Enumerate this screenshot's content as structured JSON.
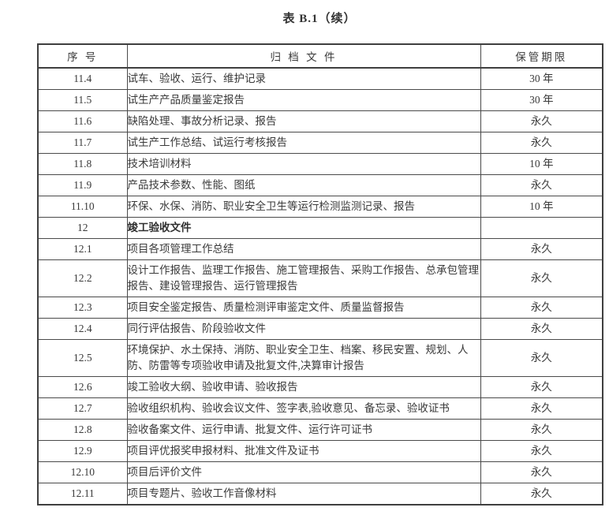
{
  "title": "表 B.1（续）",
  "colors": {
    "text": "#3a3a3a",
    "border": "#3f3f3f",
    "background": "#ffffff"
  },
  "table": {
    "headers": [
      "序 号",
      "归 档 文 件",
      "保管期限"
    ],
    "rows": [
      {
        "no": "11.4",
        "doc": "试车、验收、运行、维护记录",
        "period": "30 年"
      },
      {
        "no": "11.5",
        "doc": "试生产产品质量鉴定报告",
        "period": "30 年"
      },
      {
        "no": "11.6",
        "doc": "缺陷处理、事故分析记录、报告",
        "period": "永久"
      },
      {
        "no": "11.7",
        "doc": "试生产工作总结、试运行考核报告",
        "period": "永久"
      },
      {
        "no": "11.8",
        "doc": "技术培训材料",
        "period": "10 年"
      },
      {
        "no": "11.9",
        "doc": "产品技术参数、性能、图纸",
        "period": "永久"
      },
      {
        "no": "11.10",
        "doc": "环保、水保、消防、职业安全卫生等运行检测监测记录、报告",
        "period": "10 年"
      },
      {
        "no": "12",
        "doc": "竣工验收文件",
        "period": "",
        "bold": true
      },
      {
        "no": "12.1",
        "doc": "项目各项管理工作总结",
        "period": "永久"
      },
      {
        "no": "12.2",
        "doc": "设计工作报告、监理工作报告、施工管理报告、采购工作报告、总承包管理报告、建设管理报告、运行管理报告",
        "period": "永久"
      },
      {
        "no": "12.3",
        "doc": "项目安全鉴定报告、质量检测评审鉴定文件、质量监督报告",
        "period": "永久"
      },
      {
        "no": "12.4",
        "doc": "同行评估报告、阶段验收文件",
        "period": "永久"
      },
      {
        "no": "12.5",
        "doc": "环境保护、水土保持、消防、职业安全卫生、档案、移民安置、规划、人防、防雷等专项验收申请及批复文件,决算审计报告",
        "period": "永久"
      },
      {
        "no": "12.6",
        "doc": "竣工验收大纲、验收申请、验收报告",
        "period": "永久"
      },
      {
        "no": "12.7",
        "doc": "验收组织机构、验收会议文件、签字表,验收意见、备忘录、验收证书",
        "period": "永久"
      },
      {
        "no": "12.8",
        "doc": "验收备案文件、运行申请、批复文件、运行许可证书",
        "period": "永久"
      },
      {
        "no": "12.9",
        "doc": "项目评优报奖申报材料、批准文件及证书",
        "period": "永久"
      },
      {
        "no": "12.10",
        "doc": "项目后评价文件",
        "period": "永久"
      },
      {
        "no": "12.11",
        "doc": "项目专题片、验收工作音像材料",
        "period": "永久"
      }
    ]
  }
}
